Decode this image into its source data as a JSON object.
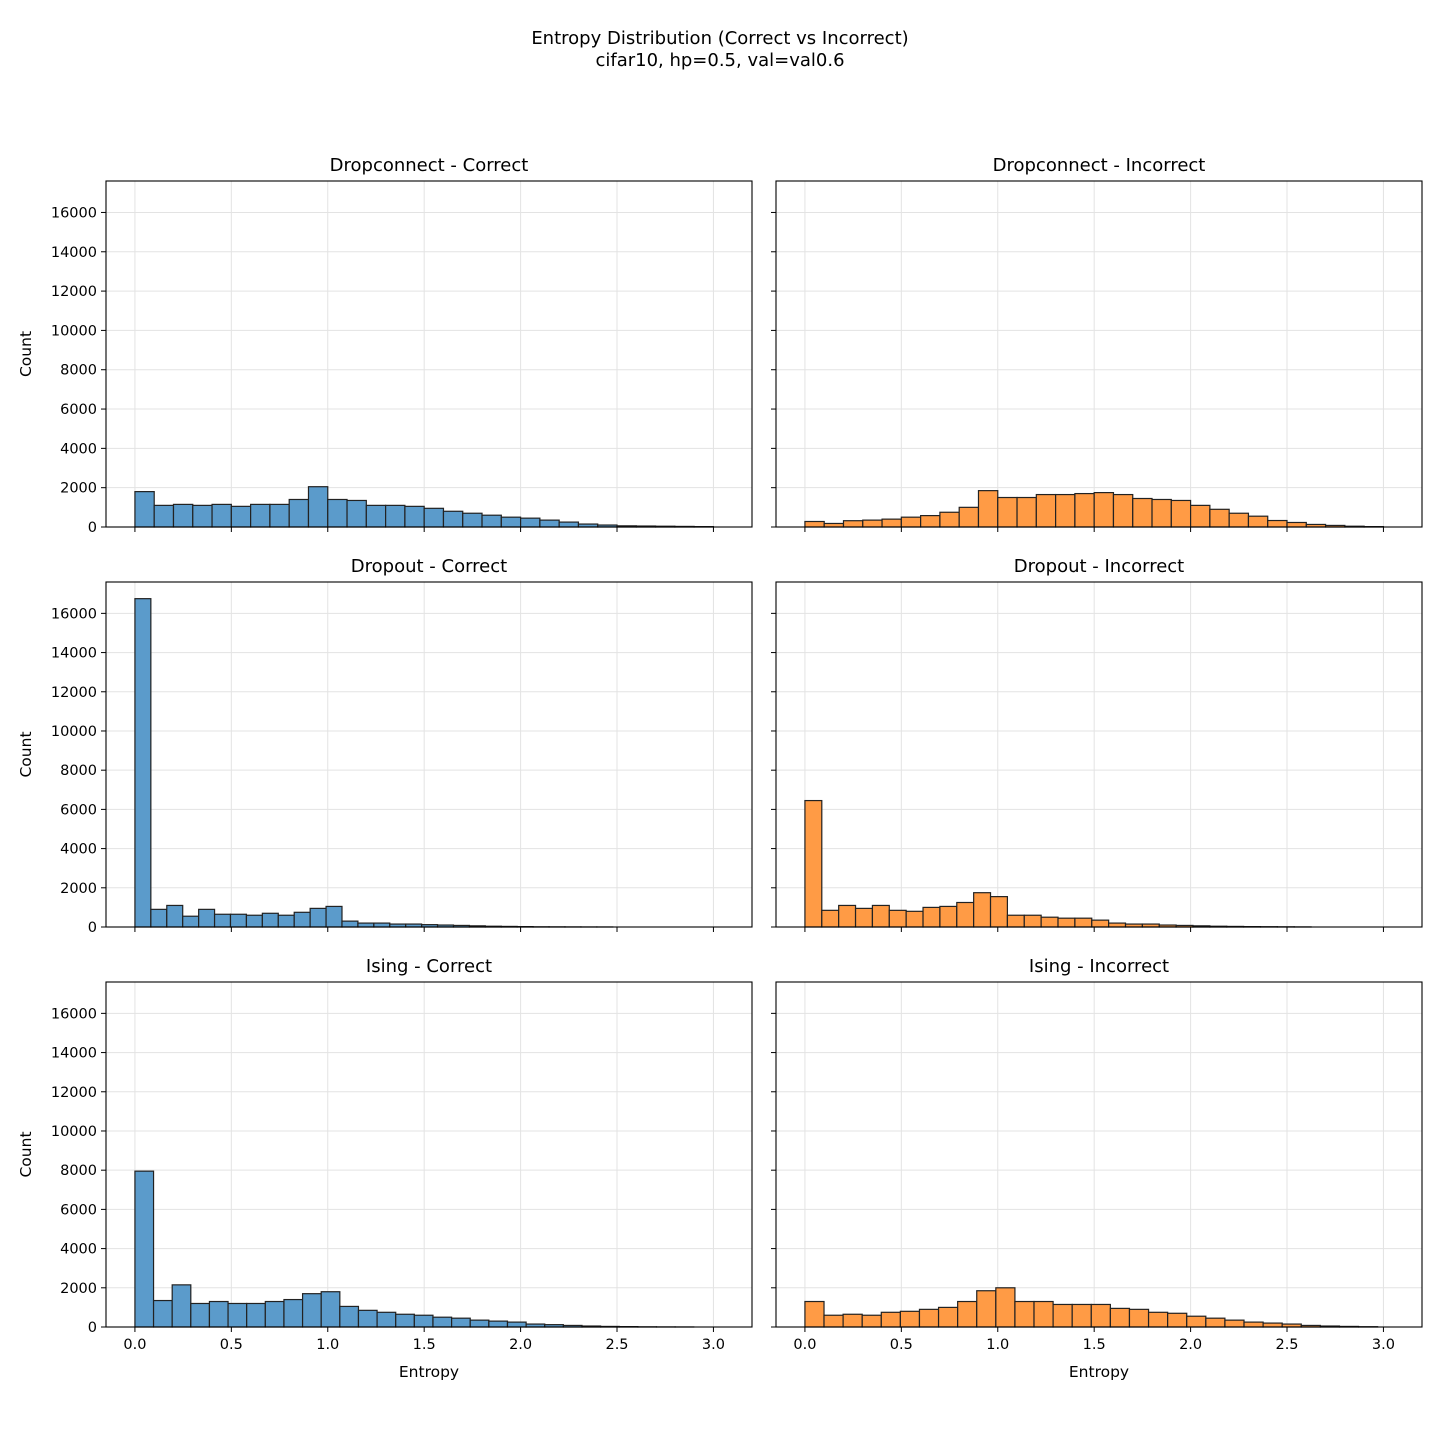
{
  "figure": {
    "title": "Entropy Distribution (Correct vs Incorrect)",
    "subtitle": "cifar10, hp=0.5, val=val0.6"
  },
  "colors": {
    "correct": "#5b9bcb",
    "incorrect": "#ff9b45",
    "edge": "#222222",
    "grid": "#e3e3e3"
  },
  "chart_data": [
    {
      "type": "bar",
      "title": "Dropconnect - Correct",
      "xlabel": "",
      "ylabel": "Count",
      "xlim": [
        -0.15,
        3.2
      ],
      "ylim": [
        0,
        17600
      ],
      "xticks": [
        "0.0",
        "0.5",
        "1.0",
        "1.5",
        "2.0",
        "2.5",
        "3.0"
      ],
      "yticks": [
        "0",
        "2000",
        "4000",
        "6000",
        "8000",
        "10000",
        "12000",
        "14000",
        "16000"
      ],
      "bin_start": 0.0,
      "bin_width": 0.1,
      "values": [
        1800,
        1100,
        1150,
        1100,
        1150,
        1050,
        1150,
        1150,
        1400,
        2050,
        1400,
        1350,
        1100,
        1100,
        1050,
        950,
        800,
        700,
        600,
        500,
        450,
        350,
        250,
        150,
        100,
        60,
        50,
        40,
        30,
        20
      ]
    },
    {
      "type": "bar",
      "title": "Dropconnect - Incorrect",
      "xlabel": "",
      "ylabel": "",
      "xlim": [
        -0.15,
        3.2
      ],
      "ylim": [
        0,
        17600
      ],
      "xticks": [
        "0.0",
        "0.5",
        "1.0",
        "1.5",
        "2.0",
        "2.5",
        "3.0"
      ],
      "yticks": [],
      "bin_start": 0.0,
      "bin_width": 0.1,
      "values": [
        280,
        180,
        320,
        350,
        400,
        500,
        580,
        750,
        1000,
        1850,
        1500,
        1500,
        1650,
        1650,
        1700,
        1750,
        1650,
        1450,
        1400,
        1350,
        1100,
        900,
        700,
        550,
        330,
        230,
        130,
        80,
        40,
        20
      ]
    },
    {
      "type": "bar",
      "title": "Dropout - Correct",
      "xlabel": "",
      "ylabel": "Count",
      "xlim": [
        -0.15,
        3.2
      ],
      "ylim": [
        0,
        17600
      ],
      "xticks": [
        "0.0",
        "0.5",
        "1.0",
        "1.5",
        "2.0",
        "2.5",
        "3.0"
      ],
      "yticks": [
        "0",
        "2000",
        "4000",
        "6000",
        "8000",
        "10000",
        "12000",
        "14000",
        "16000"
      ],
      "bin_start": 0.0,
      "bin_width": 0.0826,
      "values": [
        16750,
        900,
        1100,
        550,
        900,
        650,
        650,
        600,
        700,
        600,
        750,
        950,
        1050,
        300,
        200,
        200,
        150,
        150,
        120,
        100,
        80,
        60,
        40,
        30,
        20,
        10,
        8,
        5,
        3,
        2
      ]
    },
    {
      "type": "bar",
      "title": "Dropout - Incorrect",
      "xlabel": "",
      "ylabel": "",
      "xlim": [
        -0.15,
        3.2
      ],
      "ylim": [
        0,
        17600
      ],
      "xticks": [
        "0.0",
        "0.5",
        "1.0",
        "1.5",
        "2.0",
        "2.5",
        "3.0"
      ],
      "yticks": [],
      "bin_start": 0.0,
      "bin_width": 0.0875,
      "values": [
        6450,
        850,
        1100,
        950,
        1100,
        850,
        800,
        1000,
        1050,
        1250,
        1750,
        1550,
        600,
        600,
        500,
        450,
        450,
        350,
        200,
        150,
        150,
        100,
        80,
        60,
        40,
        30,
        20,
        15,
        10,
        5
      ]
    },
    {
      "type": "bar",
      "title": "Ising - Correct",
      "xlabel": "Entropy",
      "ylabel": "Count",
      "xlim": [
        -0.15,
        3.2
      ],
      "ylim": [
        0,
        17600
      ],
      "xticks": [
        "0.0",
        "0.5",
        "1.0",
        "1.5",
        "2.0",
        "2.5",
        "3.0"
      ],
      "yticks": [
        "0",
        "2000",
        "4000",
        "6000",
        "8000",
        "10000",
        "12000",
        "14000",
        "16000"
      ],
      "bin_start": 0.0,
      "bin_width": 0.0966,
      "values": [
        7950,
        1350,
        2150,
        1200,
        1300,
        1200,
        1200,
        1300,
        1400,
        1700,
        1800,
        1050,
        850,
        750,
        650,
        600,
        500,
        450,
        350,
        300,
        250,
        150,
        120,
        80,
        50,
        30,
        20,
        10,
        5,
        3
      ]
    },
    {
      "type": "bar",
      "title": "Ising - Incorrect",
      "xlabel": "Entropy",
      "ylabel": "",
      "xlim": [
        -0.15,
        3.2
      ],
      "ylim": [
        0,
        17600
      ],
      "xticks": [
        "0.0",
        "0.5",
        "1.0",
        "1.5",
        "2.0",
        "2.5",
        "3.0"
      ],
      "yticks": [],
      "bin_start": 0.0,
      "bin_width": 0.099,
      "values": [
        1300,
        600,
        650,
        600,
        750,
        800,
        900,
        1000,
        1300,
        1850,
        2000,
        1300,
        1300,
        1150,
        1150,
        1150,
        950,
        900,
        750,
        700,
        550,
        450,
        350,
        250,
        200,
        150,
        80,
        50,
        30,
        15
      ]
    }
  ]
}
